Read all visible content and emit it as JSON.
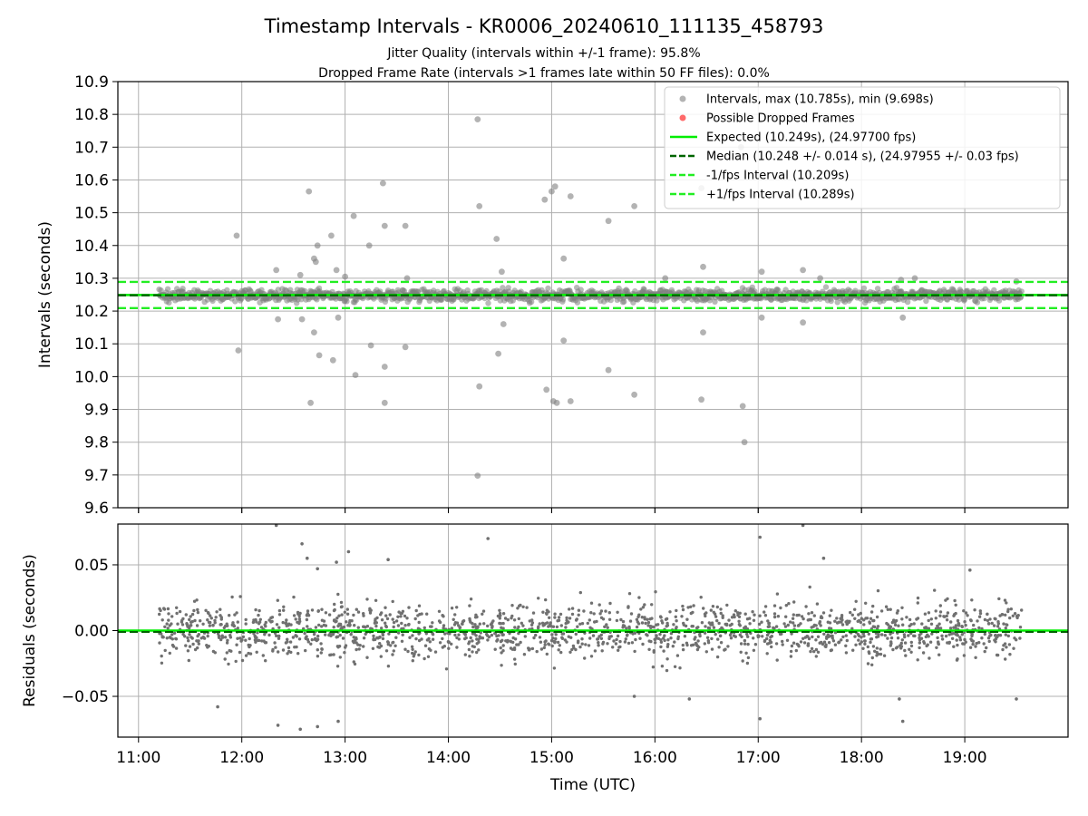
{
  "title": "Timestamp Intervals - KR0006_20240610_111135_458793",
  "subtitle_lines": [
    "Jitter Quality (intervals within +/-1 frame): 95.8%",
    "Dropped Frame Rate (intervals >1 frames late within 50 FF files): 0.0%"
  ],
  "colors": {
    "points": "#808080",
    "dropped": "#ff4040",
    "expected": "#00ee00",
    "median": "#006400",
    "interval_band": "#22ee22",
    "grid": "#b0b0b0"
  },
  "chart_data": [
    {
      "type": "scatter",
      "name_panel": "intervals",
      "ylabel": "Intervals (seconds)",
      "xlim": [
        "10:48",
        "20:00"
      ],
      "ylim": [
        9.6,
        10.9
      ],
      "yticks": [
        "9.6",
        "9.7",
        "9.8",
        "9.9",
        "10.0",
        "10.1",
        "10.2",
        "10.3",
        "10.4",
        "10.5",
        "10.6",
        "10.7",
        "10.8",
        "10.9"
      ],
      "xticks": [
        "11:00",
        "12:00",
        "13:00",
        "14:00",
        "15:00",
        "16:00",
        "17:00",
        "18:00",
        "19:00"
      ],
      "grid": true,
      "legend_position": "top-right",
      "legend": [
        {
          "label": "Intervals, max (10.785s), min (9.698s)",
          "kind": "marker",
          "color": "#a0a0a0"
        },
        {
          "label": "Possible Dropped Frames",
          "kind": "marker",
          "color": "#ff5050"
        },
        {
          "label": "Expected (10.249s), (24.97700 fps)",
          "kind": "solid",
          "color": "#00ee00"
        },
        {
          "label": "Median (10.248 +/- 0.014 s), (24.97955 +/- 0.03 fps)",
          "kind": "dashed",
          "color": "#006400"
        },
        {
          "label": "-1/fps Interval (10.209s)",
          "kind": "dashed",
          "color": "#22ee22"
        },
        {
          "label": "+1/fps Interval (10.289s)",
          "kind": "dashed",
          "color": "#22ee22"
        }
      ],
      "lines": {
        "expected": 10.249,
        "median": 10.248,
        "minus_interval": 10.209,
        "plus_interval": 10.289
      },
      "band": {
        "center": 10.248,
        "spread": 0.014,
        "x_start": "11:12",
        "x_end": "19:33"
      },
      "outliers": [
        {
          "x": "11:57",
          "y": 10.43
        },
        {
          "x": "11:58",
          "y": 10.08
        },
        {
          "x": "12:20",
          "y": 10.325
        },
        {
          "x": "12:21",
          "y": 10.175
        },
        {
          "x": "12:34",
          "y": 10.31
        },
        {
          "x": "12:35",
          "y": 10.175
        },
        {
          "x": "12:39",
          "y": 10.565
        },
        {
          "x": "12:40",
          "y": 9.92
        },
        {
          "x": "12:42",
          "y": 10.36
        },
        {
          "x": "12:42",
          "y": 10.135
        },
        {
          "x": "12:43",
          "y": 10.35
        },
        {
          "x": "12:44",
          "y": 10.4
        },
        {
          "x": "12:45",
          "y": 10.065
        },
        {
          "x": "12:52",
          "y": 10.43
        },
        {
          "x": "12:53",
          "y": 10.05
        },
        {
          "x": "12:55",
          "y": 10.325
        },
        {
          "x": "12:56",
          "y": 10.18
        },
        {
          "x": "13:00",
          "y": 10.305
        },
        {
          "x": "13:05",
          "y": 10.49
        },
        {
          "x": "13:06",
          "y": 10.005
        },
        {
          "x": "13:14",
          "y": 10.4
        },
        {
          "x": "13:15",
          "y": 10.095
        },
        {
          "x": "13:22",
          "y": 10.59
        },
        {
          "x": "13:23",
          "y": 10.46
        },
        {
          "x": "13:23",
          "y": 10.03
        },
        {
          "x": "13:23",
          "y": 9.92
        },
        {
          "x": "13:35",
          "y": 10.46
        },
        {
          "x": "13:35",
          "y": 10.09
        },
        {
          "x": "13:36",
          "y": 10.3
        },
        {
          "x": "14:17",
          "y": 10.785
        },
        {
          "x": "14:18",
          "y": 10.52
        },
        {
          "x": "14:18",
          "y": 9.97
        },
        {
          "x": "14:17",
          "y": 9.698
        },
        {
          "x": "14:28",
          "y": 10.42
        },
        {
          "x": "14:29",
          "y": 10.07
        },
        {
          "x": "14:31",
          "y": 10.32
        },
        {
          "x": "14:32",
          "y": 10.16
        },
        {
          "x": "14:56",
          "y": 10.54
        },
        {
          "x": "14:57",
          "y": 9.96
        },
        {
          "x": "15:00",
          "y": 10.565
        },
        {
          "x": "15:01",
          "y": 9.925
        },
        {
          "x": "15:02",
          "y": 10.58
        },
        {
          "x": "15:03",
          "y": 9.92
        },
        {
          "x": "15:07",
          "y": 10.36
        },
        {
          "x": "15:07",
          "y": 10.11
        },
        {
          "x": "15:11",
          "y": 10.55
        },
        {
          "x": "15:11",
          "y": 9.925
        },
        {
          "x": "15:33",
          "y": 10.475
        },
        {
          "x": "15:33",
          "y": 10.02
        },
        {
          "x": "15:48",
          "y": 10.52
        },
        {
          "x": "15:48",
          "y": 9.945
        },
        {
          "x": "16:06",
          "y": 10.3
        },
        {
          "x": "16:27",
          "y": 10.575
        },
        {
          "x": "16:28",
          "y": 10.335
        },
        {
          "x": "16:28",
          "y": 10.135
        },
        {
          "x": "16:27",
          "y": 9.93
        },
        {
          "x": "16:50",
          "y": 10.7
        },
        {
          "x": "16:51",
          "y": 9.91
        },
        {
          "x": "16:52",
          "y": 9.8
        },
        {
          "x": "17:02",
          "y": 10.32
        },
        {
          "x": "17:02",
          "y": 10.18
        },
        {
          "x": "17:26",
          "y": 10.325
        },
        {
          "x": "17:26",
          "y": 10.165
        },
        {
          "x": "17:36",
          "y": 10.3
        },
        {
          "x": "18:23",
          "y": 10.295
        },
        {
          "x": "18:24",
          "y": 10.18
        },
        {
          "x": "18:31",
          "y": 10.3
        },
        {
          "x": "19:30",
          "y": 10.29
        }
      ]
    },
    {
      "type": "scatter",
      "name_panel": "residuals",
      "xlabel": "Time (UTC)",
      "ylabel": "Residuals (seconds)",
      "xlim": [
        "10:48",
        "20:00"
      ],
      "ylim": [
        -0.081,
        0.081
      ],
      "yticks": [
        "0.05",
        "0.00",
        "−0.05"
      ],
      "xticks": [
        "11:00",
        "12:00",
        "13:00",
        "14:00",
        "15:00",
        "16:00",
        "17:00",
        "18:00",
        "19:00"
      ],
      "grid": true,
      "lines": {
        "expected": 0.0,
        "median": -0.001
      },
      "spread": 0.014,
      "x_range": [
        "11:12",
        "19:33"
      ],
      "outliers": [
        {
          "x": "12:20",
          "y": 0.08
        },
        {
          "x": "12:35",
          "y": 0.066
        },
        {
          "x": "12:38",
          "y": 0.055
        },
        {
          "x": "12:44",
          "y": 0.047
        },
        {
          "x": "12:55",
          "y": 0.052
        },
        {
          "x": "13:02",
          "y": 0.06
        },
        {
          "x": "13:25",
          "y": 0.054
        },
        {
          "x": "14:23",
          "y": 0.07
        },
        {
          "x": "17:01",
          "y": 0.071
        },
        {
          "x": "17:26",
          "y": 0.08
        },
        {
          "x": "17:38",
          "y": 0.055
        },
        {
          "x": "19:03",
          "y": 0.046
        },
        {
          "x": "12:21",
          "y": -0.072
        },
        {
          "x": "12:34",
          "y": -0.075
        },
        {
          "x": "12:44",
          "y": -0.073
        },
        {
          "x": "12:56",
          "y": -0.069
        },
        {
          "x": "11:46",
          "y": -0.058
        },
        {
          "x": "15:48",
          "y": -0.05
        },
        {
          "x": "16:20",
          "y": -0.052
        },
        {
          "x": "17:01",
          "y": -0.067
        },
        {
          "x": "18:24",
          "y": -0.069
        },
        {
          "x": "18:22",
          "y": -0.052
        },
        {
          "x": "19:30",
          "y": -0.052
        }
      ]
    }
  ]
}
